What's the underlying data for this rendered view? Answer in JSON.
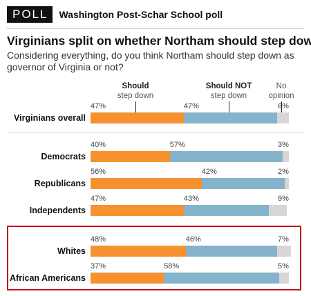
{
  "header": {
    "badge": "POLL",
    "source": "Washington Post-Schar School poll"
  },
  "title": "Virginians split on whether Northam should step down",
  "question": "Considering everything, do you think Northam should step down as governor of Virginia or not?",
  "colors": {
    "should": "#f5922f",
    "should_not": "#86b3cc",
    "no_opinion": "#d7d7d7",
    "highlight": "#c0141e"
  },
  "legend": {
    "should": {
      "line1": "Should",
      "line2": "step down"
    },
    "should_not": {
      "line1": "Should NOT",
      "line2": "step down"
    },
    "no_opinion": {
      "line1": "No",
      "line2": "opinion"
    }
  },
  "chart_data": {
    "type": "bar",
    "stacked": true,
    "orientation": "horizontal",
    "title": "Virginians split on whether Northam should step down",
    "xlim": [
      0,
      100
    ],
    "categories": [
      "Virginians overall",
      "Democrats",
      "Republicans",
      "Independents",
      "Whites",
      "African Americans"
    ],
    "labels": [
      [
        "47%",
        "47%",
        "6%"
      ],
      [
        "40%",
        "57%",
        "3%"
      ],
      [
        "56%",
        "42%",
        "2%"
      ],
      [
        "47%",
        "43%",
        "9%"
      ],
      [
        "48%",
        "46%",
        "7%"
      ],
      [
        "37%",
        "58%",
        "5%"
      ]
    ],
    "series": [
      {
        "name": "Should step down",
        "values": [
          47,
          40,
          56,
          47,
          48,
          37
        ]
      },
      {
        "name": "Should NOT step down",
        "values": [
          47,
          57,
          42,
          43,
          46,
          58
        ]
      },
      {
        "name": "No opinion",
        "values": [
          6,
          3,
          2,
          9,
          7,
          5
        ]
      }
    ],
    "highlighted_categories": [
      "Whites",
      "African Americans"
    ]
  }
}
